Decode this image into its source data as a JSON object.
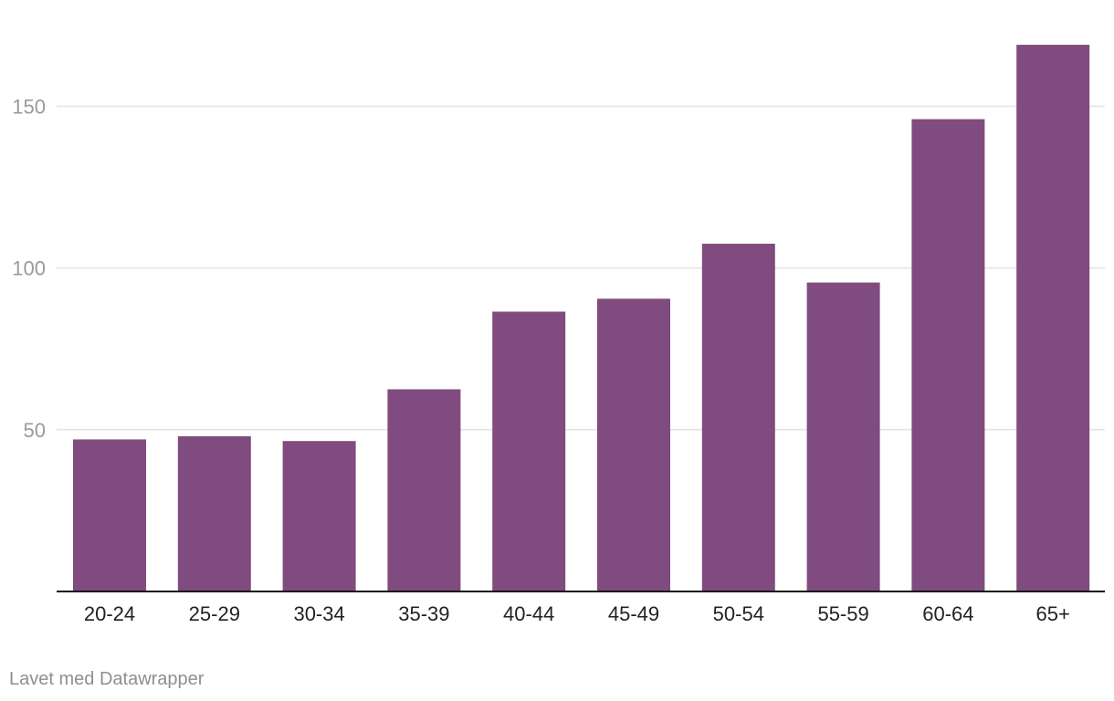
{
  "chart_data": {
    "type": "bar",
    "categories": [
      "20-24",
      "25-29",
      "30-34",
      "35-39",
      "40-44",
      "45-49",
      "50-54",
      "55-59",
      "60-64",
      "65+"
    ],
    "values": [
      47,
      48,
      46.5,
      62.5,
      86.5,
      90.5,
      107.5,
      95.5,
      146,
      169
    ],
    "yticks": [
      50,
      100,
      150
    ],
    "ylim": [
      0,
      170
    ],
    "grid": true,
    "bar_color": "#804c7f",
    "title": "",
    "xlabel": "",
    "ylabel": ""
  },
  "footer": {
    "credit": "Lavet med Datawrapper"
  }
}
